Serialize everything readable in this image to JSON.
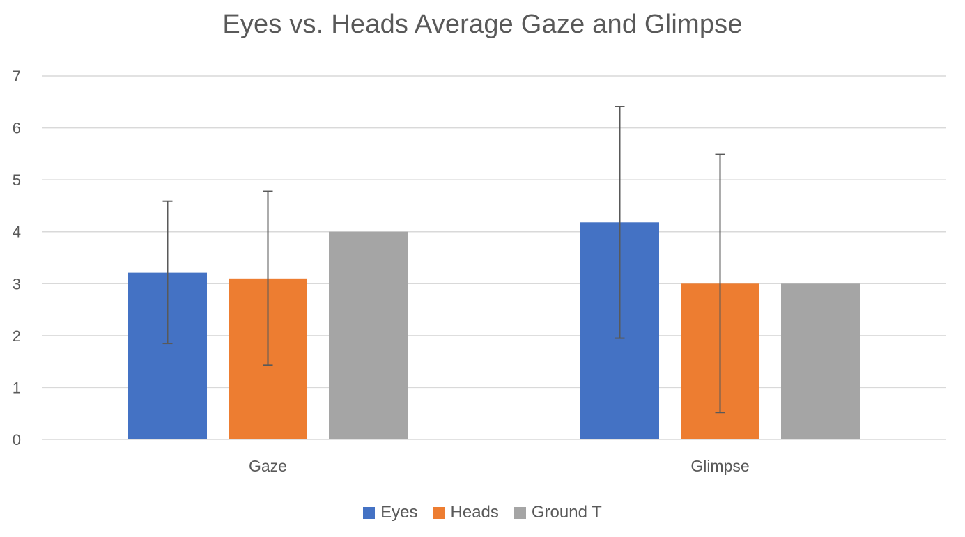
{
  "chart_data": {
    "type": "bar",
    "title": "Eyes vs. Heads Average Gaze and Glimpse",
    "categories": [
      "Gaze",
      "Glimpse"
    ],
    "series": [
      {
        "name": "Eyes",
        "color": "#4472C4",
        "values": [
          3.21,
          4.18
        ],
        "error_low": [
          1.85,
          1.95
        ],
        "error_high": [
          4.59,
          6.41
        ]
      },
      {
        "name": "Heads",
        "color": "#ED7D31",
        "values": [
          3.1,
          3.0
        ],
        "error_low": [
          1.43,
          0.52
        ],
        "error_high": [
          4.78,
          5.49
        ]
      },
      {
        "name": "Ground T",
        "color": "#A5A5A5",
        "values": [
          4.0,
          3.0
        ],
        "error_low": [
          null,
          null
        ],
        "error_high": [
          null,
          null
        ]
      }
    ],
    "ylim": [
      0,
      7
    ],
    "yticks": [
      "0",
      "1",
      "2",
      "3",
      "4",
      "5",
      "6",
      "7"
    ],
    "grid": true,
    "legend_position": "bottom"
  }
}
